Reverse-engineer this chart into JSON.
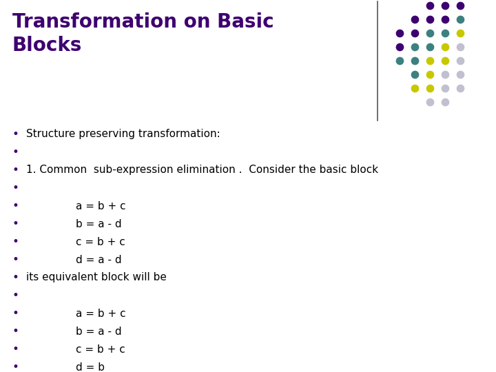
{
  "title_line1": "Transformation on Basic",
  "title_line2": "Blocks",
  "title_color": "#3d0070",
  "background_color": "#FFFFFF",
  "bullet_color": "#3d0070",
  "body_text_color": "#000000",
  "bullet_items": [
    {
      "indent": 0,
      "text": "Structure preserving transformation:"
    },
    {
      "indent": 0,
      "text": ""
    },
    {
      "indent": 0,
      "text": "1. Common  sub-expression elimination .  Consider the basic block"
    },
    {
      "indent": 0,
      "text": ""
    },
    {
      "indent": 1,
      "text": "a = b + c"
    },
    {
      "indent": 1,
      "text": "b = a - d"
    },
    {
      "indent": 1,
      "text": "c = b + c"
    },
    {
      "indent": 1,
      "text": "d = a - d"
    },
    {
      "indent": 0,
      "text": "its equivalent block will be"
    },
    {
      "indent": 0,
      "text": ""
    },
    {
      "indent": 1,
      "text": "a = b + c"
    },
    {
      "indent": 1,
      "text": "b = a - d"
    },
    {
      "indent": 1,
      "text": "c = b + c"
    },
    {
      "indent": 1,
      "text": "d = b"
    }
  ],
  "dot_colors": {
    "purple": "#3d0070",
    "teal": "#3d8080",
    "yellow": "#c8c800",
    "gray": "#c0c0d0"
  },
  "title_fontsize": 20,
  "body_fontsize": 11
}
